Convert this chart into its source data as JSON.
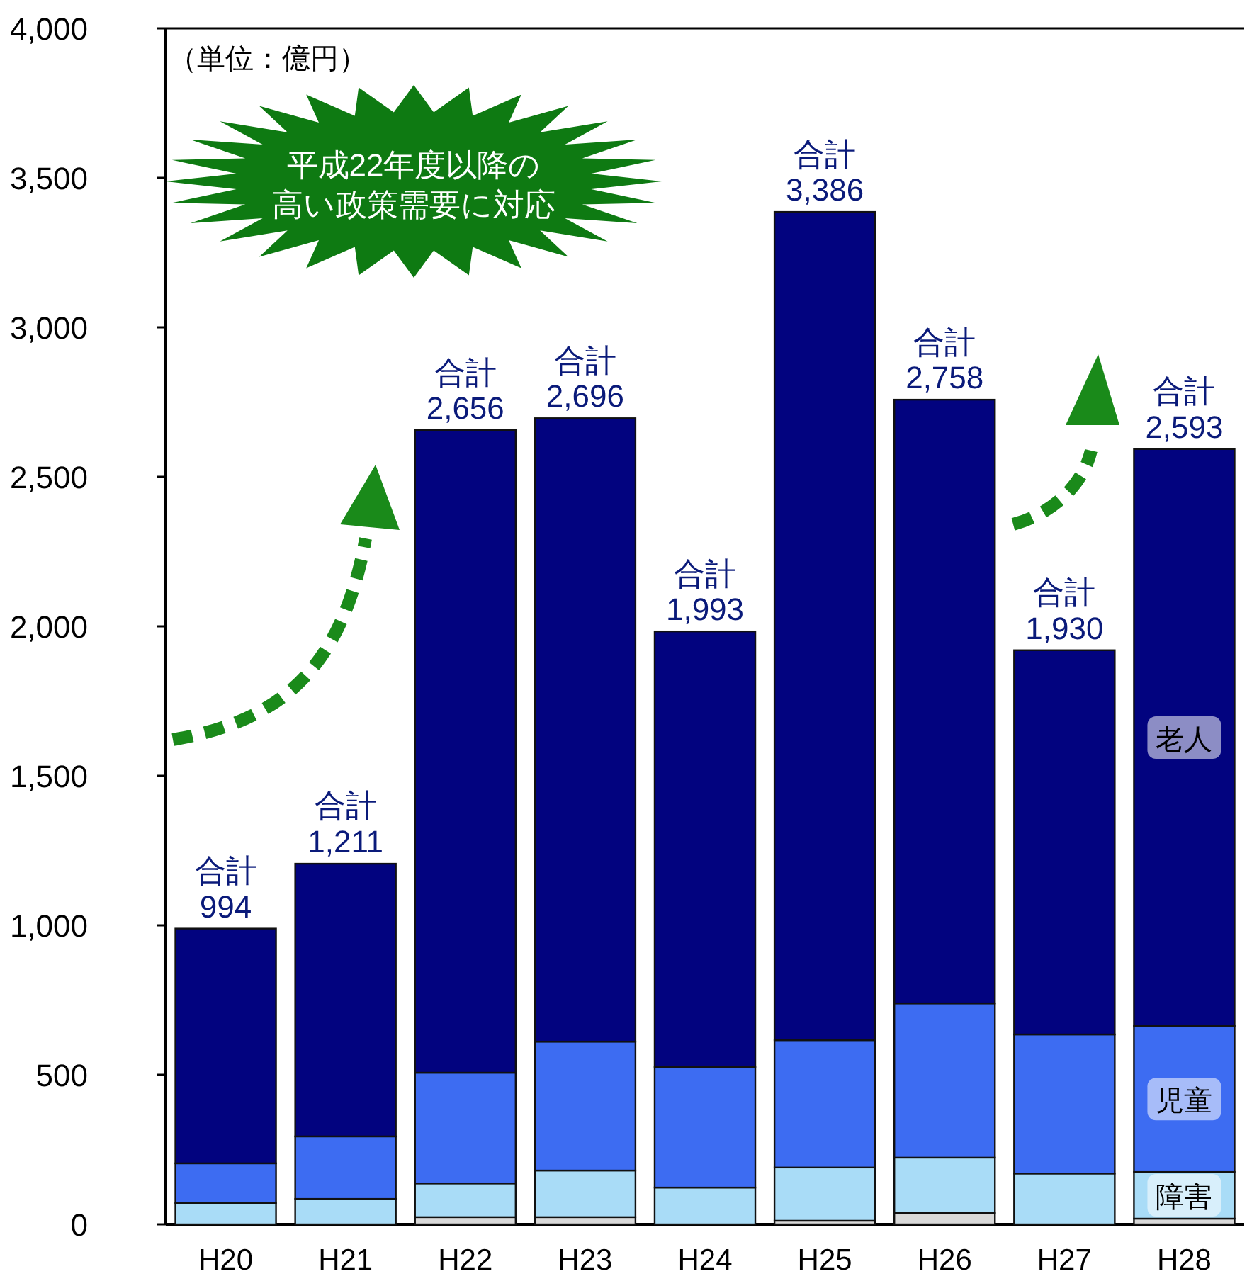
{
  "chart_data": {
    "type": "bar",
    "stacked": true,
    "categories": [
      "H20",
      "H21",
      "H22",
      "H23",
      "H24",
      "H25",
      "H26",
      "H27",
      "H28"
    ],
    "series": [
      {
        "color": "#d9d9d9",
        "values": [
          null,
          null,
          24,
          24,
          null,
          12,
          38,
          null,
          19
        ]
      },
      {
        "name": "障害",
        "color": "#a9dcf7",
        "values": [
          71,
          85,
          113,
          156,
          123,
          178,
          185,
          170,
          156
        ]
      },
      {
        "name": "児童",
        "color": "#3d6cf2",
        "values": [
          133,
          209,
          370,
          431,
          403,
          426,
          516,
          465,
          488
        ]
      },
      {
        "name": "老人",
        "color": "#02037f",
        "values": [
          785,
          912,
          2149,
          2085,
          1457,
          2770,
          2019,
          1285,
          1930
        ]
      }
    ],
    "totals": [
      "合計\n994",
      "合計\n1,211",
      "合計\n2,656",
      "合計\n2,696",
      "合計\n1,993",
      "合計\n3,386",
      "合計\n2,758",
      "合計\n1,930",
      "合計\n2,593"
    ],
    "ylim": [
      0,
      4000
    ],
    "yticks": [
      {
        "value": 0,
        "label": "0"
      },
      {
        "value": 500,
        "label": "500"
      },
      {
        "value": 1000,
        "label": "1,000"
      },
      {
        "value": 1500,
        "label": "1,500"
      },
      {
        "value": 2000,
        "label": "2,000"
      },
      {
        "value": 2500,
        "label": "2,500"
      },
      {
        "value": 3000,
        "label": "3,000"
      },
      {
        "value": 3500,
        "label": "3,500"
      },
      {
        "value": 4000,
        "label": "4,000"
      }
    ],
    "annotations": [
      "（単位：億円）",
      "平成22年度以降の",
      "高い政策需要に対応"
    ]
  }
}
